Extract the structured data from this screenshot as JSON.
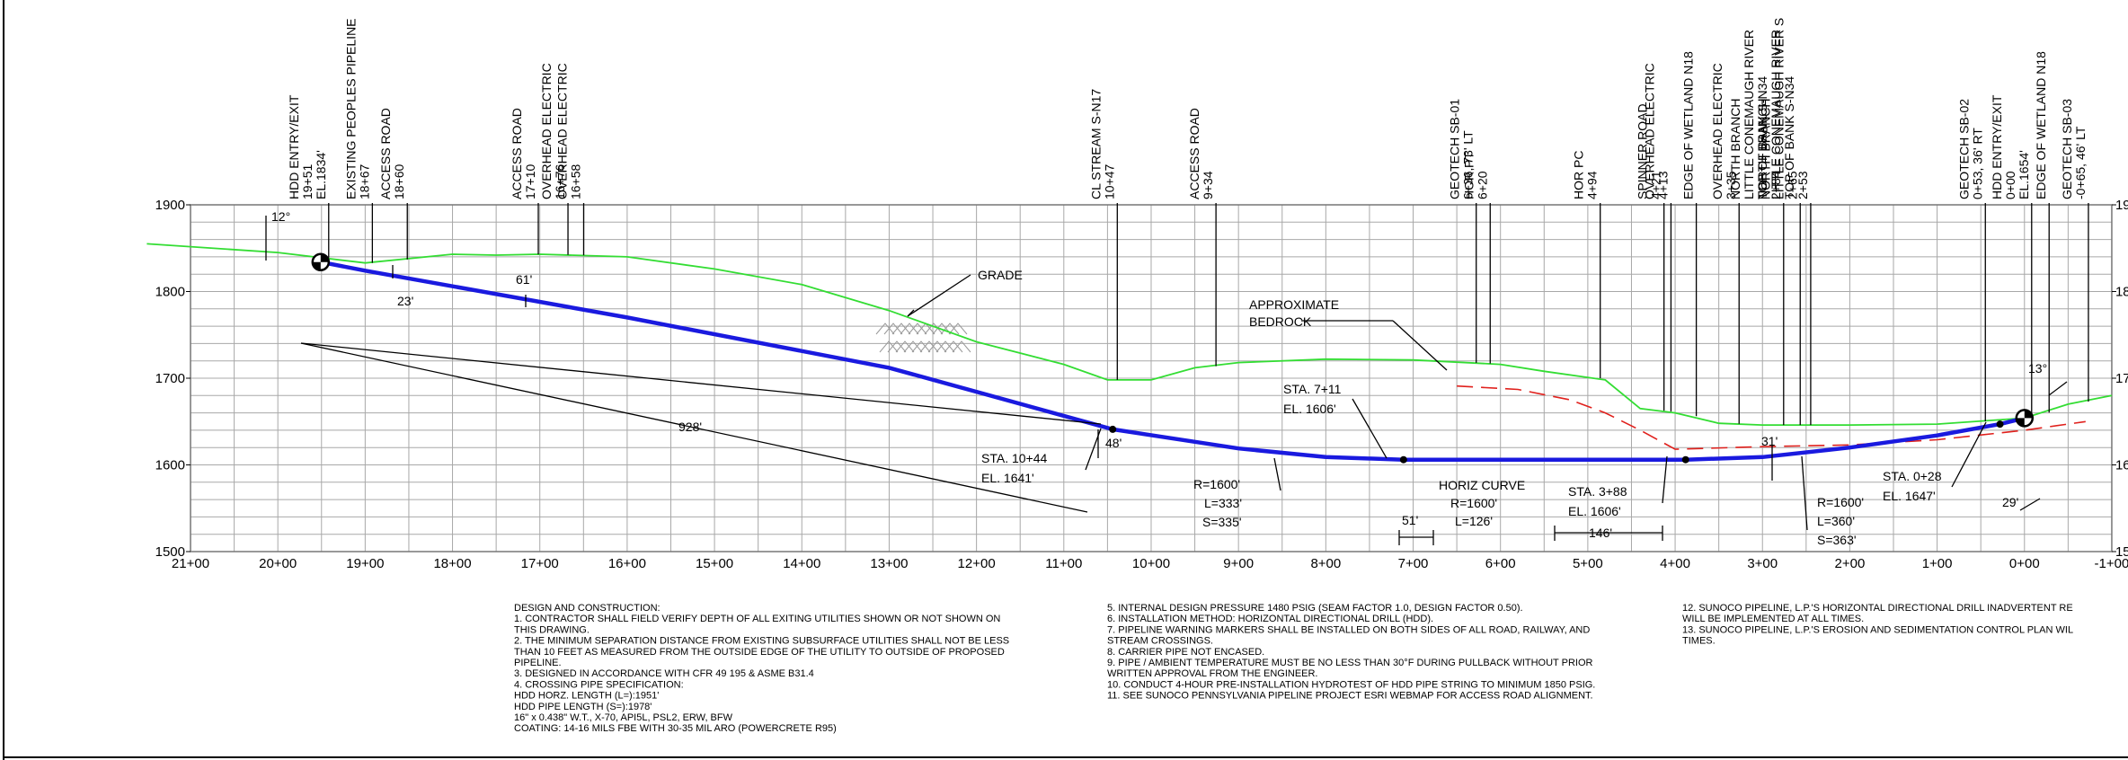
{
  "profile": {
    "elevation_axis": {
      "ticks": [
        "1900",
        "1800",
        "1700",
        "1600",
        "1500"
      ],
      "values": [
        1900,
        1800,
        1700,
        1600,
        1500
      ]
    },
    "station_axis": {
      "ticks": [
        "21+00",
        "20+00",
        "19+00",
        "18+00",
        "17+00",
        "16+00",
        "15+00",
        "14+00",
        "13+00",
        "12+00",
        "11+00",
        "10+00",
        "9+00",
        "8+00",
        "7+00",
        "6+00",
        "5+00",
        "4+00",
        "3+00",
        "2+00",
        "1+00",
        "0+00",
        "-1+00"
      ],
      "values": [
        2100,
        2000,
        1900,
        1800,
        1700,
        1600,
        1500,
        1400,
        1300,
        1200,
        1100,
        1000,
        900,
        800,
        700,
        600,
        500,
        400,
        300,
        200,
        100,
        0,
        -100
      ]
    },
    "grade_line": [
      [
        2150,
        1855
      ],
      [
        2000,
        1845
      ],
      [
        1900,
        1833
      ],
      [
        1800,
        1843
      ],
      [
        1750,
        1842
      ],
      [
        1700,
        1843
      ],
      [
        1600,
        1840
      ],
      [
        1500,
        1826
      ],
      [
        1400,
        1808
      ],
      [
        1300,
        1778
      ],
      [
        1200,
        1742
      ],
      [
        1100,
        1716
      ],
      [
        1050,
        1698
      ],
      [
        1000,
        1698
      ],
      [
        950,
        1712
      ],
      [
        900,
        1718
      ],
      [
        800,
        1722
      ],
      [
        700,
        1721
      ],
      [
        600,
        1716
      ],
      [
        550,
        1708
      ],
      [
        480,
        1698
      ],
      [
        440,
        1665
      ],
      [
        400,
        1660
      ],
      [
        350,
        1648
      ],
      [
        300,
        1646
      ],
      [
        200,
        1646
      ],
      [
        100,
        1647
      ],
      [
        0,
        1654
      ],
      [
        -50,
        1670
      ],
      [
        -100,
        1680
      ]
    ],
    "bedrock_line": [
      [
        650,
        1691
      ],
      [
        580,
        1687
      ],
      [
        520,
        1675
      ],
      [
        480,
        1660
      ],
      [
        440,
        1640
      ],
      [
        400,
        1618
      ],
      [
        300,
        1621
      ],
      [
        200,
        1623
      ],
      [
        100,
        1629
      ],
      [
        0,
        1640
      ],
      [
        -70,
        1650
      ]
    ],
    "pipe_line": [
      [
        1951,
        1834
      ],
      [
        1900,
        1824
      ],
      [
        1600,
        1770
      ],
      [
        1300,
        1712
      ],
      [
        1044,
        1641
      ],
      [
        900,
        1619
      ],
      [
        800,
        1609
      ],
      [
        711,
        1606
      ],
      [
        600,
        1606
      ],
      [
        500,
        1606
      ],
      [
        388,
        1606
      ],
      [
        300,
        1609
      ],
      [
        200,
        1620
      ],
      [
        100,
        1634
      ],
      [
        28,
        1647
      ],
      [
        0,
        1654
      ]
    ],
    "entry_point": [
      1951,
      1834
    ],
    "exit_point": [
      0,
      1654
    ],
    "callouts": [
      {
        "station": 1950,
        "lines": [
          "HDD ENTRY/EXIT",
          "19+51",
          "EL.1834'"
        ]
      },
      {
        "station": 1900,
        "lines": [
          "EXISTING PEOPLES PIPELINE",
          "18+67"
        ]
      },
      {
        "station": 1860,
        "lines": [
          "ACCESS ROAD",
          "18+60"
        ]
      },
      {
        "station": 1710,
        "lines": [
          "ACCESS ROAD",
          "17+10"
        ]
      },
      {
        "station": 1676,
        "lines": [
          "OVERHEAD ELECTRIC",
          "16+76"
        ]
      },
      {
        "station": 1658,
        "lines": [
          "OVERHEAD ELECTRIC",
          "16+58"
        ]
      },
      {
        "station": 1047,
        "lines": [
          "CL STREAM S-N17",
          "10+47"
        ]
      },
      {
        "station": 934,
        "lines": [
          "ACCESS ROAD",
          "9+34"
        ]
      },
      {
        "station": 636,
        "lines": [
          "GEOTECH SB-01",
          "6+36, 73' LT"
        ]
      },
      {
        "station": 620,
        "lines": [
          "HOR PT",
          "6+20"
        ]
      },
      {
        "station": 494,
        "lines": [
          "HOR PC",
          "4+94"
        ]
      },
      {
        "station": 421,
        "lines": [
          "SPINNER ROAD",
          "4+21"
        ]
      },
      {
        "station": 413,
        "lines": [
          "OVERHEAD ELECTRIC",
          "4+13"
        ]
      },
      {
        "station": 384,
        "lines": [
          "EDGE OF WETLAND N18"
        ]
      },
      {
        "station": 335,
        "lines": [
          "OVERHEAD ELECTRIC",
          "3+35"
        ]
      },
      {
        "station": 284,
        "lines": [
          "NORTH BRANCH",
          "LITTLE CONEMAUGH RIVER",
          "TOP OF BANK S-N34",
          "2+84"
        ]
      },
      {
        "station": 265,
        "lines": [
          "NORTH BRANCH",
          "LITTLE CONEMAUGH RIVER S",
          "2+65"
        ]
      },
      {
        "station": 253,
        "lines": [
          "NORTH BRANCH",
          "LITTLE CONEMAUGH RIVER",
          "TOP OF BANK S-N34",
          "2+53"
        ]
      },
      {
        "station": 53,
        "lines": [
          "GEOTECH SB-02",
          "0+53, 36' RT"
        ]
      },
      {
        "station": 0,
        "lines": [
          "HDD ENTRY/EXIT",
          "0+00",
          "EL.1654'"
        ]
      },
      {
        "station": -20,
        "lines": [
          "EDGE OF WETLAND N18"
        ]
      },
      {
        "station": -65,
        "lines": [
          "GEOTECH SB-03",
          "-0+65, 46' LT"
        ]
      }
    ],
    "labels": {
      "grade": "GRADE",
      "approx_bedrock_1": "APPROXIMATE",
      "approx_bedrock_2": "BEDROCK",
      "entry_angle": "12°",
      "exit_angle": "13°",
      "dim_23": "23'",
      "dim_61": "61'",
      "dim_48": "48'",
      "dim_31": "31'",
      "dim_29": "29'",
      "dim_928": "928'",
      "dim_51": "51'",
      "dim_146": "146'",
      "sta_1044_a": "STA. 10+44",
      "sta_1044_b": "EL. 1641'",
      "sta_711_a": "STA. 7+11",
      "sta_711_b": "EL. 1606'",
      "sta_388_a": "STA. 3+88",
      "sta_388_b": "EL. 1606'",
      "sta_028_a": "STA. 0+28",
      "sta_028_b": "EL. 1647'",
      "curve1_r": "R=1600'",
      "curve1_l": "L=333'",
      "curve1_s": "S=335'",
      "horiz_1": "HORIZ CURVE",
      "horiz_2": "R=1600'",
      "horiz_3": "L=126'",
      "curve2_r": "R=1600'",
      "curve2_l": "L=360'",
      "curve2_s": "S=363'"
    }
  },
  "notes": {
    "col1": [
      "DESIGN AND CONSTRUCTION:",
      "1.    CONTRACTOR SHALL FIELD VERIFY DEPTH OF ALL EXITING UTILITIES SHOWN OR NOT SHOWN ON",
      "       THIS DRAWING.",
      "2.    THE MINIMUM SEPARATION DISTANCE FROM EXISTING SUBSURFACE UTILITIES SHALL NOT BE LESS",
      "       THAN 10 FEET AS MEASURED FROM THE OUTSIDE EDGE OF THE UTILITY TO OUTSIDE OF PROPOSED",
      "       PIPELINE.",
      "3.    DESIGNED IN ACCORDANCE WITH CFR 49 195 & ASME B31.4",
      "4.    CROSSING PIPE SPECIFICATION:",
      "       HDD HORZ. LENGTH (L=):1951'",
      "       HDD PIPE LENGTH (S=):1978'",
      "       16\" x 0.438\" W.T., X-70, API5L, PSL2, ERW, BFW",
      "       COATING: 14-16 MILS FBE WITH 30-35 MIL ARO (POWERCRETE R95)"
    ],
    "col2": [
      "5.    INTERNAL DESIGN PRESSURE 1480 PSIG (SEAM FACTOR 1.0, DESIGN FACTOR 0.50).",
      "6.    INSTALLATION METHOD: HORIZONTAL DIRECTIONAL DRILL (HDD).",
      "7.    PIPELINE WARNING MARKERS SHALL BE INSTALLED ON BOTH SIDES OF ALL ROAD, RAILWAY, AND",
      "       STREAM CROSSINGS.",
      "8.    CARRIER PIPE NOT ENCASED.",
      "9.    PIPE / AMBIENT TEMPERATURE MUST BE NO LESS THAN 30°F DURING PULLBACK WITHOUT PRIOR",
      "       WRITTEN APPROVAL FROM THE ENGINEER.",
      "10.  CONDUCT 4-HOUR PRE-INSTALLATION HYDROTEST OF HDD PIPE STRING TO MINIMUM 1850 PSIG.",
      "11.  SEE SUNOCO PENNSYLVANIA PIPELINE PROJECT ESRI WEBMAP FOR ACCESS ROAD ALIGNMENT."
    ],
    "col3": [
      "12.   SUNOCO PIPELINE, L.P.'S HORIZONTAL DIRECTIONAL DRILL INADVERTENT RE",
      "        WILL BE IMPLEMENTED AT ALL TIMES.",
      "13.   SUNOCO PIPELINE, L.P.'S EROSION AND SEDIMENTATION CONTROL PLAN WIL",
      "        TIMES."
    ]
  },
  "colors": {
    "grade": "#33dd33",
    "pipe": "#1a1adf",
    "bedrock": "#e0201c",
    "grid": "#a8a8a8",
    "frame": "#000000"
  }
}
